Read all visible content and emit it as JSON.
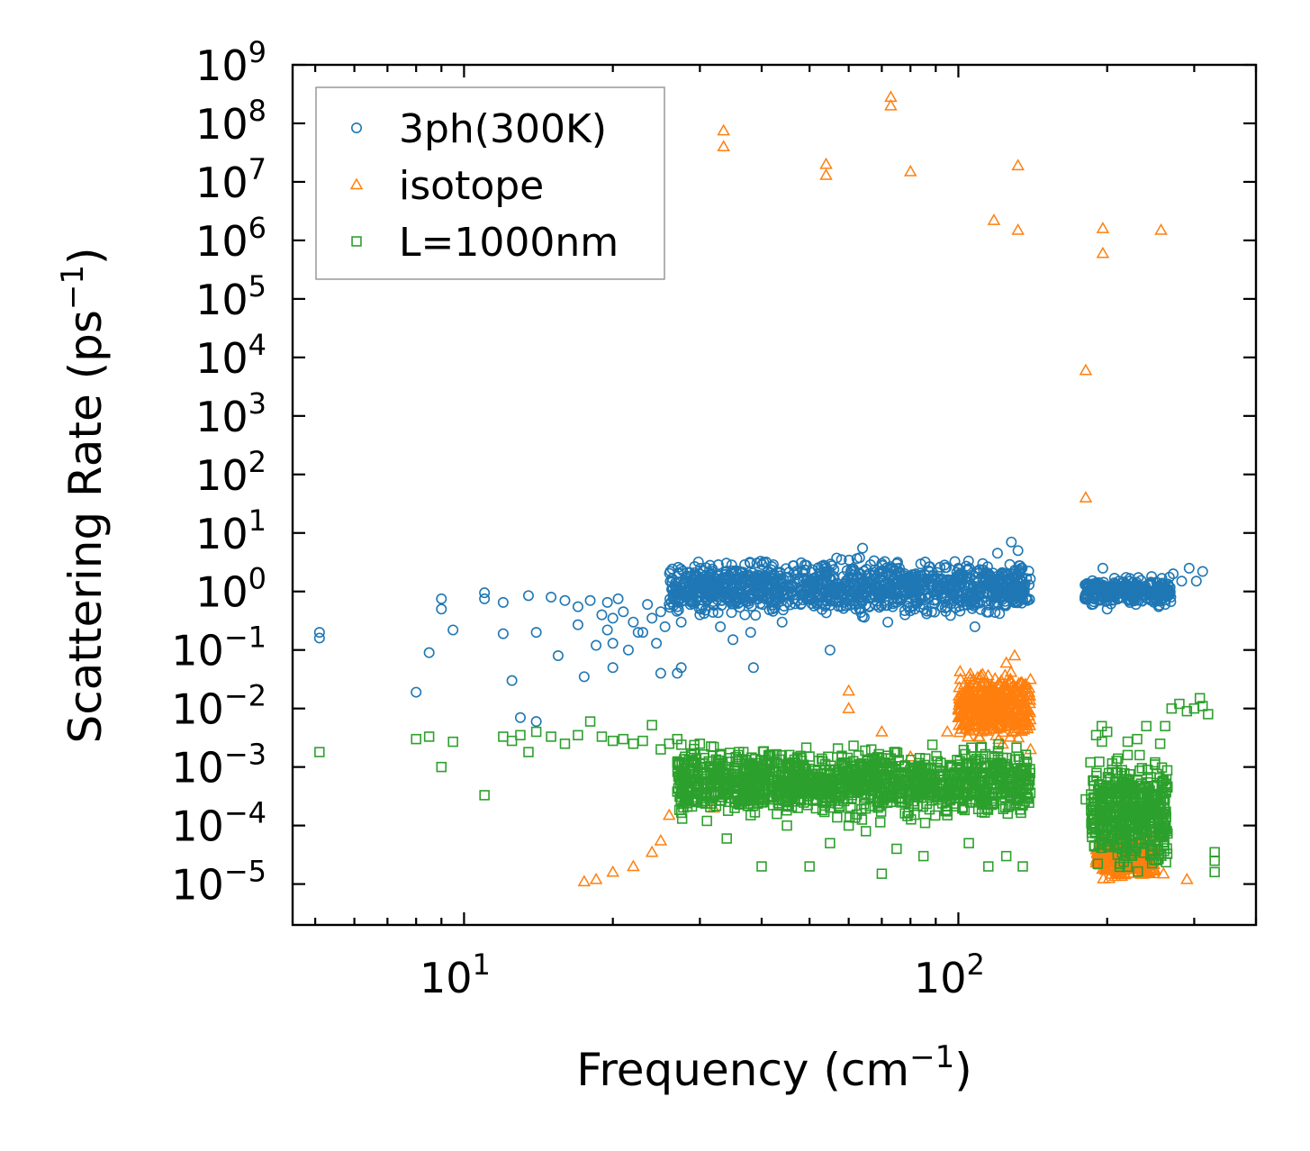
{
  "chart_data": {
    "type": "scatter",
    "title": "",
    "xlabel": "Frequency (cm",
    "xlabel_sup": "−1",
    "xlabel_end": ")",
    "ylabel": "Scattering Rate (ps",
    "ylabel_sup": "−1",
    "ylabel_end": ")",
    "xscale": "log",
    "yscale": "log",
    "xlim": [
      4.5,
      400
    ],
    "ylim": [
      2e-06,
      1000000000
    ],
    "x_ticks": [
      {
        "value": 10,
        "base": "10",
        "exp": "1"
      },
      {
        "value": 100,
        "base": "10",
        "exp": "2"
      }
    ],
    "y_ticks": [
      {
        "value": 1e-05,
        "base": "10",
        "exp": "−5"
      },
      {
        "value": 0.0001,
        "base": "10",
        "exp": "−4"
      },
      {
        "value": 0.001,
        "base": "10",
        "exp": "−3"
      },
      {
        "value": 0.01,
        "base": "10",
        "exp": "−2"
      },
      {
        "value": 0.1,
        "base": "10",
        "exp": "−1"
      },
      {
        "value": 1,
        "base": "10",
        "exp": "0"
      },
      {
        "value": 10,
        "base": "10",
        "exp": "1"
      },
      {
        "value": 100,
        "base": "10",
        "exp": "2"
      },
      {
        "value": 1000,
        "base": "10",
        "exp": "3"
      },
      {
        "value": 10000,
        "base": "10",
        "exp": "4"
      },
      {
        "value": 100000,
        "base": "10",
        "exp": "5"
      },
      {
        "value": 1000000,
        "base": "10",
        "exp": "6"
      },
      {
        "value": 10000000,
        "base": "10",
        "exp": "7"
      },
      {
        "value": 100000000,
        "base": "10",
        "exp": "8"
      },
      {
        "value": 1000000000,
        "base": "10",
        "exp": "9"
      }
    ],
    "legend_position": "top-left",
    "series": [
      {
        "name": "3ph(300K)",
        "marker": "circle",
        "color": "#1f77b4",
        "points": [
          [
            5.1,
            0.2
          ],
          [
            5.1,
            0.16
          ],
          [
            8,
            0.019
          ],
          [
            8.5,
            0.09
          ],
          [
            9,
            0.75
          ],
          [
            9,
            0.5
          ],
          [
            9.5,
            0.22
          ],
          [
            11,
            0.95
          ],
          [
            11,
            0.75
          ],
          [
            12,
            0.65
          ],
          [
            12,
            0.19
          ],
          [
            12.5,
            0.03
          ],
          [
            13.5,
            0.85
          ],
          [
            13,
            0.007
          ],
          [
            14,
            0.2
          ],
          [
            14,
            0.006
          ],
          [
            15,
            0.8
          ],
          [
            15.5,
            0.08
          ],
          [
            16,
            0.7
          ],
          [
            17,
            0.55
          ],
          [
            17,
            0.27
          ],
          [
            17.5,
            0.035
          ],
          [
            18,
            0.7
          ],
          [
            18.5,
            0.12
          ],
          [
            19,
            0.4
          ],
          [
            19.5,
            0.22
          ],
          [
            19.5,
            0.65
          ],
          [
            20,
            0.05
          ],
          [
            20,
            0.35
          ],
          [
            20,
            0.13
          ],
          [
            20.5,
            0.75
          ],
          [
            21,
            0.45
          ],
          [
            21.5,
            0.1
          ],
          [
            22,
            0.3
          ],
          [
            22.5,
            0.2
          ],
          [
            23,
            0.2
          ],
          [
            23.5,
            0.6
          ],
          [
            24,
            0.35
          ],
          [
            24.5,
            0.13
          ],
          [
            25,
            0.45
          ],
          [
            25.5,
            0.25
          ],
          [
            25,
            0.04
          ],
          [
            26,
            0.6
          ],
          [
            26.5,
            0.75
          ],
          [
            27,
            0.55
          ],
          [
            27,
            0.04
          ],
          [
            27.5,
            0.05
          ],
          [
            27.5,
            0.3
          ],
          [
            28,
            0.8
          ],
          [
            29,
            0.9
          ],
          [
            30,
            0.4
          ],
          [
            31,
            0.7
          ],
          [
            32,
            0.6
          ],
          [
            33,
            0.25
          ],
          [
            34,
            0.9
          ],
          [
            35,
            0.15
          ],
          [
            36,
            0.65
          ],
          [
            37,
            0.4
          ],
          [
            38,
            0.2
          ],
          [
            38.5,
            0.05
          ],
          [
            40,
            0.8
          ],
          [
            42,
            0.5
          ],
          [
            44,
            0.3
          ],
          [
            46,
            1.0
          ],
          [
            48,
            0.6
          ],
          [
            50,
            1.5
          ],
          [
            52,
            0.7
          ],
          [
            54,
            2.5
          ],
          [
            55,
            0.1
          ],
          [
            56,
            1.8
          ],
          [
            58,
            3.5
          ],
          [
            60,
            1.2
          ],
          [
            62,
            0.5
          ],
          [
            64,
            5.5
          ],
          [
            66,
            2.0
          ],
          [
            68,
            0.8
          ],
          [
            70,
            3.0
          ],
          [
            72,
            0.3
          ],
          [
            74,
            1.5
          ],
          [
            76,
            2.5
          ],
          [
            78,
            0.4
          ],
          [
            80,
            1.0
          ],
          [
            82,
            2.0
          ],
          [
            85,
            0.6
          ],
          [
            88,
            1.2
          ],
          [
            90,
            0.9
          ],
          [
            95,
            1.5
          ],
          [
            100,
            2.5
          ],
          [
            104,
            1.0
          ],
          [
            108,
            0.25
          ],
          [
            112,
            3.0
          ],
          [
            116,
            1.8
          ],
          [
            120,
            4.5
          ],
          [
            124,
            0.6
          ],
          [
            128,
            7.0
          ],
          [
            132,
            5.0
          ],
          [
            136,
            1.0
          ],
          [
            138,
            0.7
          ],
          [
            182,
            0.9
          ],
          [
            192,
            0.7
          ],
          [
            196,
            2.5
          ],
          [
            200,
            0.5
          ],
          [
            210,
            1.0
          ],
          [
            222,
            1.5
          ],
          [
            234,
            0.8
          ],
          [
            246,
            1.8
          ],
          [
            256,
            1.2
          ],
          [
            262,
            0.6
          ],
          [
            272,
            2.0
          ],
          [
            283,
            1.5
          ],
          [
            293,
            2.5
          ],
          [
            303,
            1.5
          ],
          [
            312,
            2.2
          ]
        ],
        "clusters": [
          {
            "x_range": [
              26,
              140
            ],
            "y_range": [
              0.3,
              4.5
            ],
            "count": 1200
          },
          {
            "x_range": [
              180,
              270
            ],
            "y_range": [
              0.5,
              2.0
            ],
            "count": 300
          }
        ]
      },
      {
        "name": "isotope",
        "marker": "triangle",
        "color": "#ff7f0e",
        "points": [
          [
            33.5,
            75000000
          ],
          [
            33.5,
            40000000
          ],
          [
            54,
            20000000
          ],
          [
            54,
            13000000
          ],
          [
            73,
            280000000
          ],
          [
            73,
            200000000
          ],
          [
            80,
            15000000
          ],
          [
            132,
            19000000
          ],
          [
            118,
            2200000
          ],
          [
            132,
            1500000
          ],
          [
            196,
            1600000
          ],
          [
            196,
            600000
          ],
          [
            257,
            1500000
          ],
          [
            181,
            6000
          ],
          [
            181,
            40
          ],
          [
            17.5,
            1.1e-05
          ],
          [
            18.5,
            1.2e-05
          ],
          [
            20,
            1.6e-05
          ],
          [
            22,
            2e-05
          ],
          [
            24,
            3.5e-05
          ],
          [
            25,
            5.5e-05
          ],
          [
            26,
            0.00015
          ],
          [
            28,
            0.0003
          ],
          [
            32,
            0.0002
          ],
          [
            40,
            0.00035
          ],
          [
            50,
            0.00045
          ],
          [
            60,
            0.02
          ],
          [
            60,
            0.01
          ],
          [
            70,
            0.004
          ],
          [
            80,
            0.0015
          ],
          [
            95,
            0.004
          ],
          [
            108,
            0.01
          ],
          [
            115,
            0.02
          ],
          [
            125,
            0.06
          ],
          [
            130,
            0.08
          ],
          [
            135,
            0.01
          ],
          [
            140,
            0.002
          ],
          [
            190,
            0.00012
          ],
          [
            200,
            5e-05
          ],
          [
            210,
            2e-05
          ],
          [
            220,
            0.00015
          ],
          [
            230,
            0.0001
          ],
          [
            240,
            3e-05
          ],
          [
            260,
            1.5e-05
          ],
          [
            290,
            1.2e-05
          ]
        ],
        "clusters": [
          {
            "x_range": [
              100,
              140
            ],
            "y_range": [
              0.002,
              0.06
            ],
            "count": 400
          },
          {
            "x_range": [
              190,
              250
            ],
            "y_range": [
              1e-05,
              8e-05
            ],
            "count": 300
          }
        ]
      },
      {
        "name": "L=1000nm",
        "marker": "square",
        "color": "#2ca02c",
        "points": [
          [
            5.1,
            0.0018
          ],
          [
            8,
            0.003
          ],
          [
            8.5,
            0.0033
          ],
          [
            9,
            0.001
          ],
          [
            9.5,
            0.0027
          ],
          [
            11,
            0.00033
          ],
          [
            12,
            0.0033
          ],
          [
            12.5,
            0.0028
          ],
          [
            13,
            0.0035
          ],
          [
            13.5,
            0.0018
          ],
          [
            14,
            0.004
          ],
          [
            15,
            0.0033
          ],
          [
            16,
            0.0025
          ],
          [
            17,
            0.0035
          ],
          [
            18,
            0.006
          ],
          [
            19,
            0.0033
          ],
          [
            20,
            0.0028
          ],
          [
            21,
            0.003
          ],
          [
            22,
            0.0025
          ],
          [
            23,
            0.0028
          ],
          [
            24,
            0.0052
          ],
          [
            25,
            0.002
          ],
          [
            26,
            0.0025
          ],
          [
            27,
            0.003
          ],
          [
            28,
            0.0015
          ],
          [
            29,
            0.0013
          ],
          [
            30,
            0.0025
          ],
          [
            31,
            0.00012
          ],
          [
            32,
            0.0022
          ],
          [
            34,
            6e-05
          ],
          [
            36,
            0.0018
          ],
          [
            38,
            0.00015
          ],
          [
            40,
            2e-05
          ],
          [
            45,
            0.0001
          ],
          [
            50,
            2e-05
          ],
          [
            55,
            5e-05
          ],
          [
            60,
            0.0001
          ],
          [
            65,
            8e-05
          ],
          [
            70,
            1.5e-05
          ],
          [
            75,
            4e-05
          ],
          [
            85,
            3e-05
          ],
          [
            95,
            0.00015
          ],
          [
            105,
            5e-05
          ],
          [
            115,
            2e-05
          ],
          [
            125,
            3e-05
          ],
          [
            135,
            2e-05
          ],
          [
            181,
            0.00028
          ],
          [
            185,
            0.0012
          ],
          [
            190,
            0.0035
          ],
          [
            195,
            0.005
          ],
          [
            200,
            0.004
          ],
          [
            210,
            0.0008
          ],
          [
            220,
            0.0016
          ],
          [
            230,
            0.003
          ],
          [
            240,
            0.005
          ],
          [
            250,
            0.0012
          ],
          [
            256,
            0.0025
          ],
          [
            262,
            0.005
          ],
          [
            270,
            0.01
          ],
          [
            280,
            0.012
          ],
          [
            290,
            0.009
          ],
          [
            300,
            0.01
          ],
          [
            308,
            0.015
          ],
          [
            312,
            0.011
          ],
          [
            320,
            0.008
          ],
          [
            330,
            3.5e-05
          ],
          [
            330,
            1.6e-05
          ],
          [
            330,
            2.5e-05
          ]
        ],
        "clusters": [
          {
            "x_range": [
              27,
              140
            ],
            "y_range": [
              0.0001,
              0.003
            ],
            "count": 1400
          },
          {
            "x_range": [
              185,
              265
            ],
            "y_range": [
              1e-05,
              0.003
            ],
            "count": 500
          }
        ]
      }
    ]
  }
}
